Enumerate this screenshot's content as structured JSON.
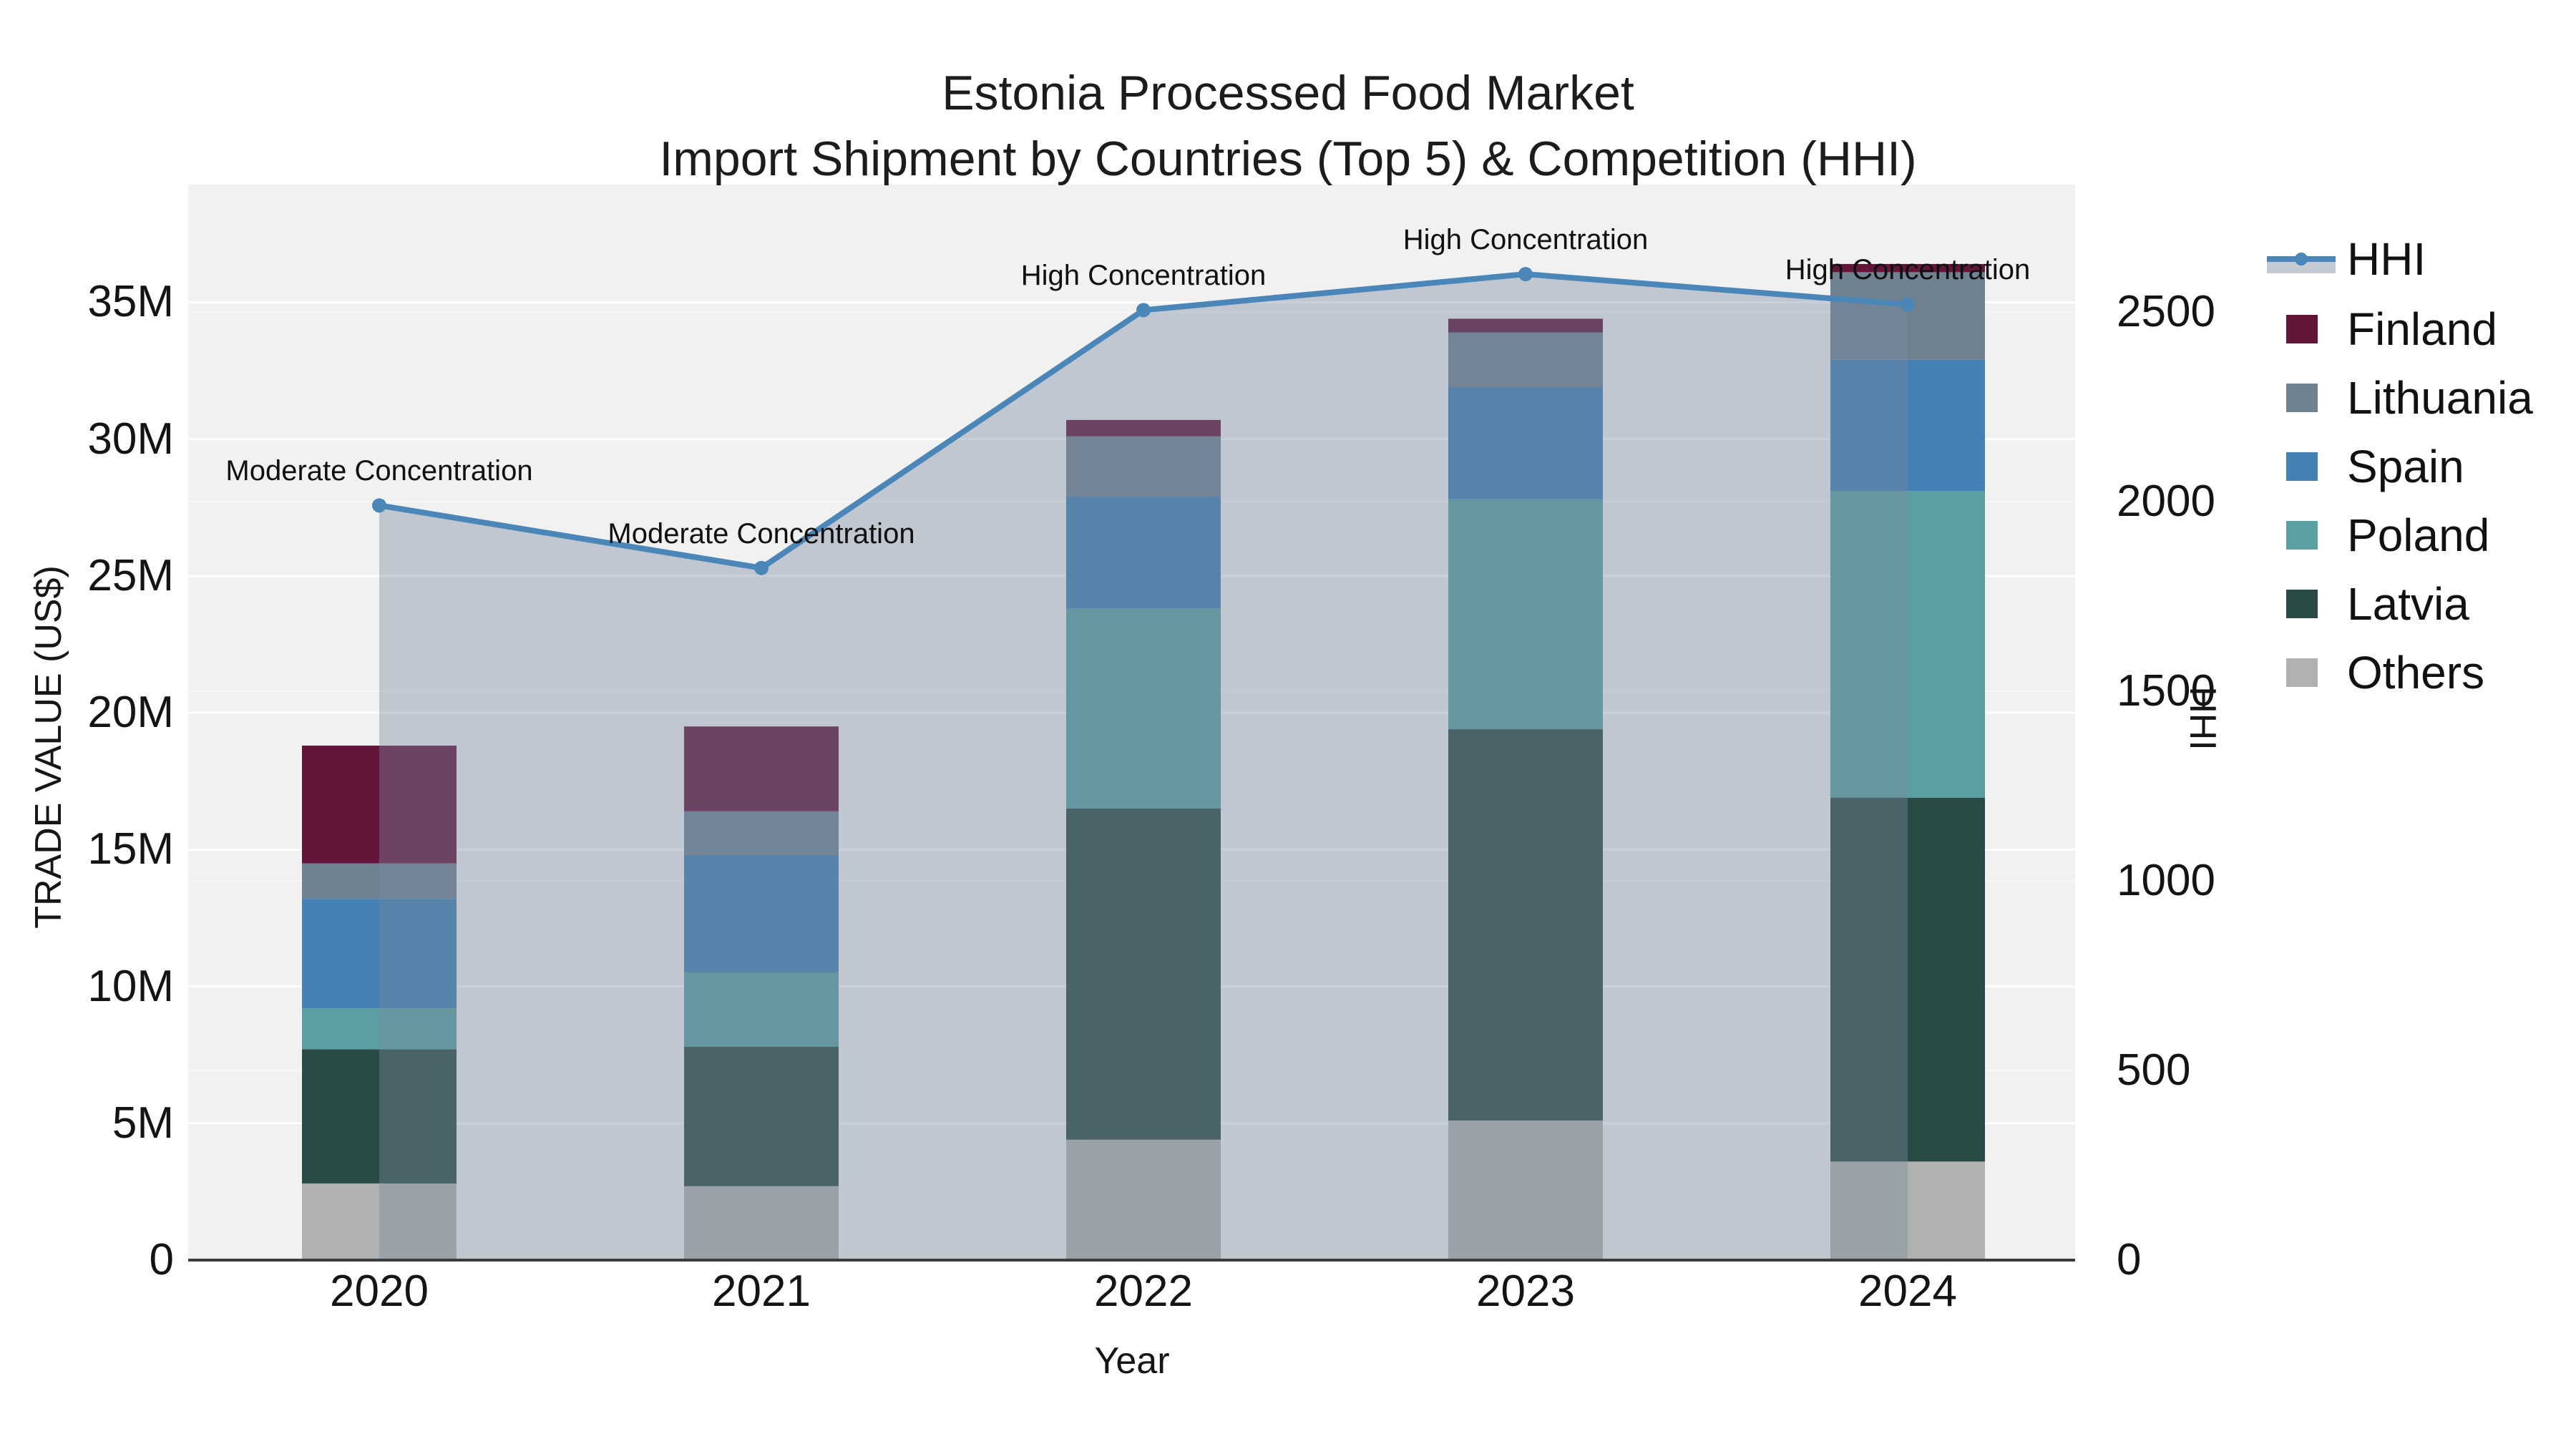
{
  "title": {
    "line1": "Estonia Processed Food Market",
    "line2": "Import Shipment by Countries (Top 5) & Competition (HHI)"
  },
  "chart_data": {
    "type": "combo-stacked-bar-line-area",
    "categories": [
      "2020",
      "2021",
      "2022",
      "2023",
      "2024"
    ],
    "values_unit": "US$ millions (left axis), HHI index (right axis)",
    "bar_series": [
      {
        "name": "Others",
        "color": "#b0b2b0",
        "values": [
          2.8,
          2.7,
          4.4,
          5.1,
          3.6
        ]
      },
      {
        "name": "Latvia",
        "color": "#2a4a45",
        "values": [
          4.9,
          5.1,
          12.1,
          14.3,
          13.3
        ]
      },
      {
        "name": "Poland",
        "color": "#5b9fa0",
        "values": [
          1.5,
          2.7,
          7.3,
          8.4,
          11.2
        ]
      },
      {
        "name": "Spain",
        "color": "#4480b4",
        "values": [
          4.0,
          4.3,
          4.1,
          4.1,
          4.8
        ]
      },
      {
        "name": "Lithuania",
        "color": "#70818f",
        "values": [
          1.3,
          1.6,
          2.2,
          2.0,
          3.2
        ]
      },
      {
        "name": "Finland",
        "color": "#641539",
        "values": [
          4.3,
          3.1,
          0.6,
          0.5,
          0.3
        ]
      }
    ],
    "line_series": {
      "name": "HHI",
      "color": "#4a86b8",
      "area_fill": "rgba(120,138,160,0.40)",
      "values": [
        1990,
        1825,
        2505,
        2600,
        2520
      ]
    },
    "annotations": [
      {
        "category": "2020",
        "text": "Moderate Concentration"
      },
      {
        "category": "2021",
        "text": "Moderate Concentration"
      },
      {
        "category": "2022",
        "text": "High Concentration"
      },
      {
        "category": "2023",
        "text": "High Concentration"
      },
      {
        "category": "2024",
        "text": "High Concentration"
      }
    ],
    "x_axis": {
      "title": "Year"
    },
    "y_axis": {
      "title": "TRADE VALUE (US$)",
      "ticks": [
        {
          "v": 0,
          "label": "0"
        },
        {
          "v": 5,
          "label": "5M"
        },
        {
          "v": 10,
          "label": "10M"
        },
        {
          "v": 15,
          "label": "15M"
        },
        {
          "v": 20,
          "label": "20M"
        },
        {
          "v": 25,
          "label": "25M"
        },
        {
          "v": 30,
          "label": "30M"
        },
        {
          "v": 35,
          "label": "35M"
        }
      ],
      "range": [
        0,
        39.3
      ]
    },
    "y2_axis": {
      "title": "HHI",
      "ticks": [
        {
          "v": 0,
          "label": "0"
        },
        {
          "v": 500,
          "label": "500"
        },
        {
          "v": 1000,
          "label": "1000"
        },
        {
          "v": 1500,
          "label": "1500"
        },
        {
          "v": 2000,
          "label": "2000"
        },
        {
          "v": 2500,
          "label": "2500"
        }
      ],
      "range": [
        0,
        2836
      ]
    },
    "legend": [
      {
        "label": "HHI",
        "type": "line",
        "color": "#4a86b8"
      },
      {
        "label": "Finland",
        "type": "swatch",
        "color": "#641539"
      },
      {
        "label": "Lithuania",
        "type": "swatch",
        "color": "#70818f"
      },
      {
        "label": "Spain",
        "type": "swatch",
        "color": "#4480b4"
      },
      {
        "label": "Poland",
        "type": "swatch",
        "color": "#5b9fa0"
      },
      {
        "label": "Latvia",
        "type": "swatch",
        "color": "#2a4a45"
      },
      {
        "label": "Others",
        "type": "swatch",
        "color": "#b0b2b0"
      }
    ],
    "style": {
      "plot_bg": "#f1f1f2",
      "grid_primary": "#ffffff",
      "grid_secondary": "#f7f7f9",
      "axis_line": "#3c3c3c",
      "text_color": "#141414"
    }
  }
}
